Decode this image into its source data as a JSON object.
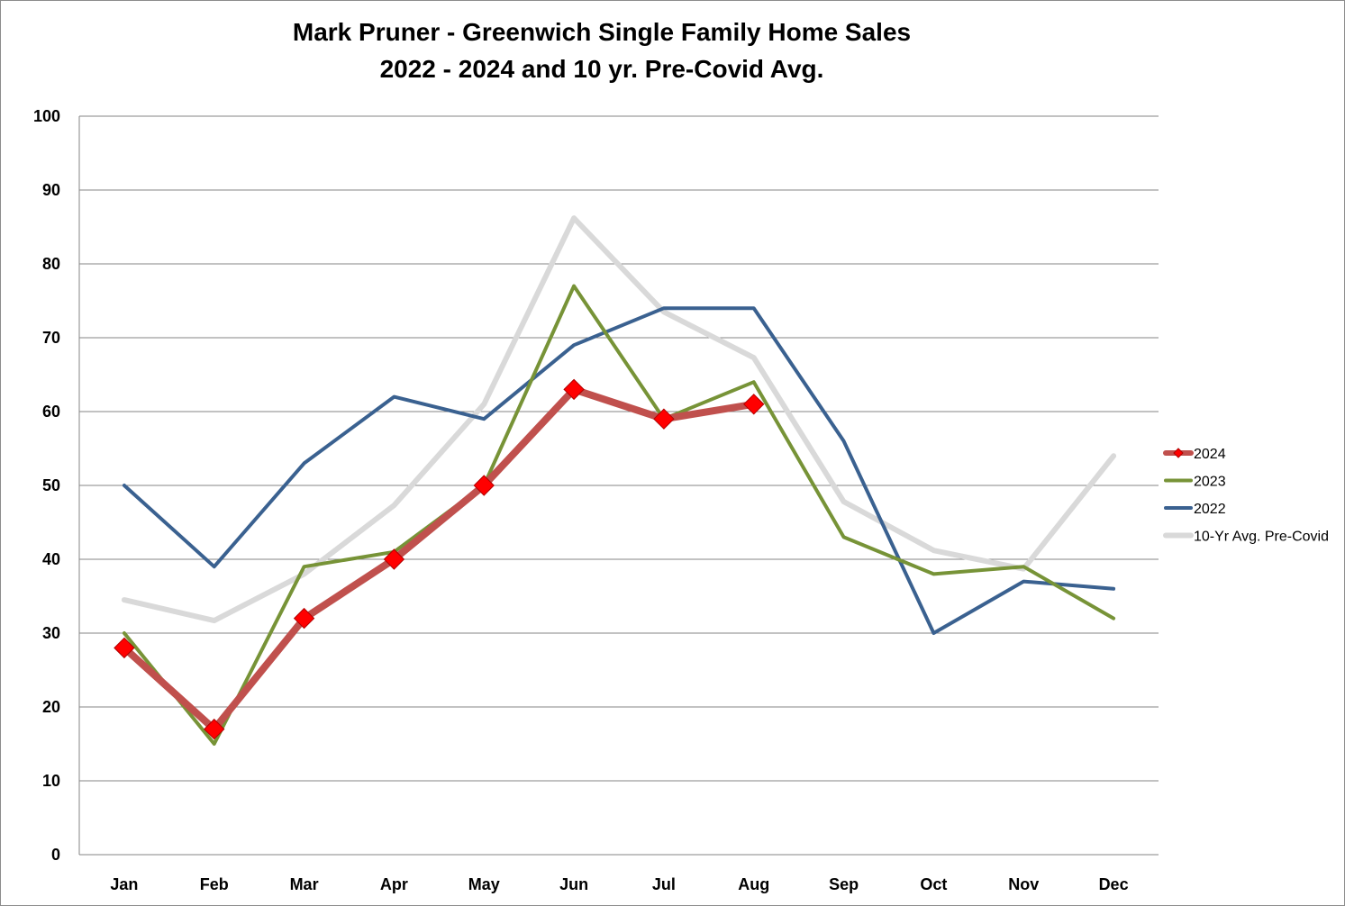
{
  "chart_data": {
    "type": "line",
    "title": "Mark Pruner - Greenwich Single Family Home Sales",
    "subtitle": "2022 - 2024 and 10 yr. Pre-Covid Avg.",
    "xlabel": "",
    "ylabel": "",
    "categories": [
      "Jan",
      "Feb",
      "Mar",
      "Apr",
      "May",
      "Jun",
      "Jul",
      "Aug",
      "Sep",
      "Oct",
      "Nov",
      "Dec"
    ],
    "ylim": [
      0,
      100
    ],
    "yticks": [
      0,
      10,
      20,
      30,
      40,
      50,
      60,
      70,
      80,
      90,
      100
    ],
    "grid": true,
    "legend_position": "right",
    "series": [
      {
        "name": "10-Yr Avg. Pre-Covid",
        "color": "#d9d9d9",
        "width": 6,
        "marker": "none",
        "values": [
          34.5,
          31.7,
          38,
          47.3,
          61,
          86.2,
          73.5,
          67.3,
          47.8,
          41.2,
          38.7,
          54
        ]
      },
      {
        "name": "2022",
        "color": "#3a6190",
        "width": 4,
        "marker": "none",
        "values": [
          50,
          39,
          53,
          62,
          59,
          69,
          74,
          74,
          56,
          30,
          37,
          36
        ]
      },
      {
        "name": "2023",
        "color": "#779337",
        "width": 4,
        "marker": "none",
        "values": [
          30,
          15,
          39,
          41,
          50,
          77,
          59,
          64,
          43,
          38,
          39,
          32
        ]
      },
      {
        "name": "2024",
        "color": "#c0504d",
        "width": 8,
        "marker": "diamond",
        "marker_color": "#ff0000",
        "values": [
          28,
          17,
          32,
          40,
          50,
          63,
          59,
          61,
          null,
          null,
          null,
          null
        ]
      }
    ],
    "legend_order": [
      "2024",
      "2023",
      "2022",
      "10-Yr Avg. Pre-Covid"
    ]
  }
}
